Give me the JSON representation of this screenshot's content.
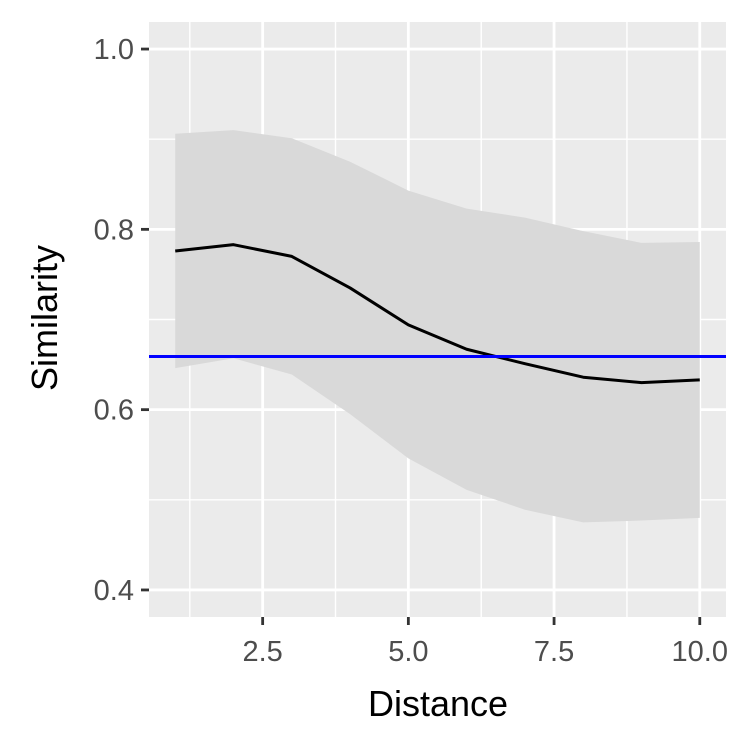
{
  "chart_data": {
    "type": "line",
    "title": "",
    "xlabel": "Distance",
    "ylabel": "Similarity",
    "xlim": [
      0.55,
      10.45
    ],
    "ylim": [
      0.37,
      1.03
    ],
    "x_ticks": [
      {
        "value": 2.5,
        "label": "2.5"
      },
      {
        "value": 5.0,
        "label": "5.0"
      },
      {
        "value": 7.5,
        "label": "7.5"
      },
      {
        "value": 10.0,
        "label": "10.0"
      }
    ],
    "x_minor_grid": [
      1.25,
      3.75,
      6.25,
      8.75
    ],
    "y_ticks": [
      {
        "value": 0.4,
        "label": "0.4"
      },
      {
        "value": 0.6,
        "label": "0.6"
      },
      {
        "value": 0.8,
        "label": "0.8"
      },
      {
        "value": 1.0,
        "label": "1.0"
      }
    ],
    "y_minor_grid": [
      0.5,
      0.7,
      0.9
    ],
    "grid": true,
    "panel_background": "#ebebeb",
    "grid_color": "#ffffff",
    "x": [
      1,
      2,
      3,
      4,
      5,
      6,
      7,
      8,
      9,
      10
    ],
    "series": [
      {
        "color": "#000000",
        "values": [
          0.776,
          0.783,
          0.77,
          0.735,
          0.694,
          0.667,
          0.651,
          0.636,
          0.63,
          0.633
        ]
      }
    ],
    "ribbon": {
      "color": "#d9d9d9",
      "upper": [
        0.906,
        0.91,
        0.901,
        0.875,
        0.843,
        0.823,
        0.813,
        0.798,
        0.785,
        0.786
      ],
      "lower": [
        0.646,
        0.657,
        0.639,
        0.595,
        0.546,
        0.511,
        0.489,
        0.475,
        0.477,
        0.48
      ]
    },
    "hline": {
      "value": 0.659,
      "color": "#0000ff"
    }
  }
}
